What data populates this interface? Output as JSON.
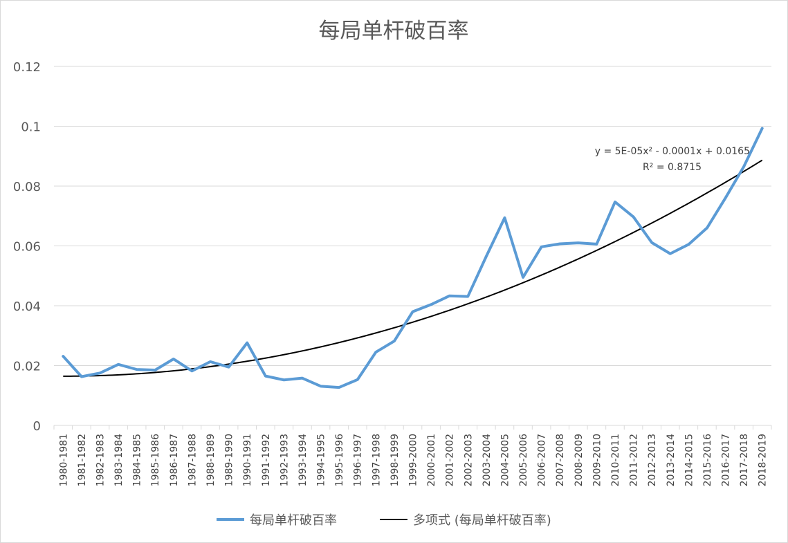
{
  "chart_data": {
    "type": "line",
    "title": "每局单杆破百率",
    "xlabel": "",
    "ylabel": "",
    "ylim": [
      0,
      0.12
    ],
    "yticks": [
      "0",
      "0.02",
      "0.04",
      "0.06",
      "0.08",
      "0.1",
      "0.12"
    ],
    "ytick_values": [
      0,
      0.02,
      0.04,
      0.06,
      0.08,
      0.1,
      0.12
    ],
    "grid": "horizontal",
    "legend": "bottom",
    "categories": [
      "1980-1981",
      "1981-1982",
      "1982-1983",
      "1983-1984",
      "1984-1985",
      "1985-1986",
      "1986-1987",
      "1987-1988",
      "1988-1989",
      "1989-1990",
      "1990-1991",
      "1991-1992",
      "1992-1993",
      "1993-1994",
      "1994-1995",
      "1995-1996",
      "1996-1997",
      "1997-1998",
      "1998-1999",
      "1999-2000",
      "2000-2001",
      "2001-2002",
      "2002-2003",
      "2003-2004",
      "2004-2005",
      "2005-2006",
      "2006-2007",
      "2007-2008",
      "2008-2009",
      "2009-2010",
      "2010-2011",
      "2011-2012",
      "2012-2013",
      "2013-2014",
      "2014-2015",
      "2015-2016",
      "2016-2017",
      "2017-2018",
      "2018-2019"
    ],
    "series": [
      {
        "name": "每局单杆破百率",
        "color": "#5b9bd5",
        "values": [
          0.0231,
          0.0163,
          0.0175,
          0.0204,
          0.0187,
          0.0185,
          0.0222,
          0.0182,
          0.0213,
          0.0195,
          0.0276,
          0.0165,
          0.0152,
          0.0158,
          0.0131,
          0.0127,
          0.0153,
          0.0245,
          0.0282,
          0.038,
          0.0404,
          0.0433,
          0.0431,
          0.0565,
          0.0694,
          0.0495,
          0.0597,
          0.0607,
          0.061,
          0.0606,
          0.0747,
          0.0697,
          0.0611,
          0.0574,
          0.0605,
          0.066,
          0.076,
          0.0865,
          0.0993
        ]
      }
    ],
    "trendline": {
      "name": "多项式 (每局单杆破百率)",
      "color": "#000000",
      "type": "polynomial",
      "order": 2,
      "coefficients": {
        "a": 5e-05,
        "b": -0.0001,
        "c": 0.0165
      },
      "equation": "y = 5E-05x² - 0.0001x + 0.0165",
      "r_squared": "R² = 0.8715"
    }
  }
}
